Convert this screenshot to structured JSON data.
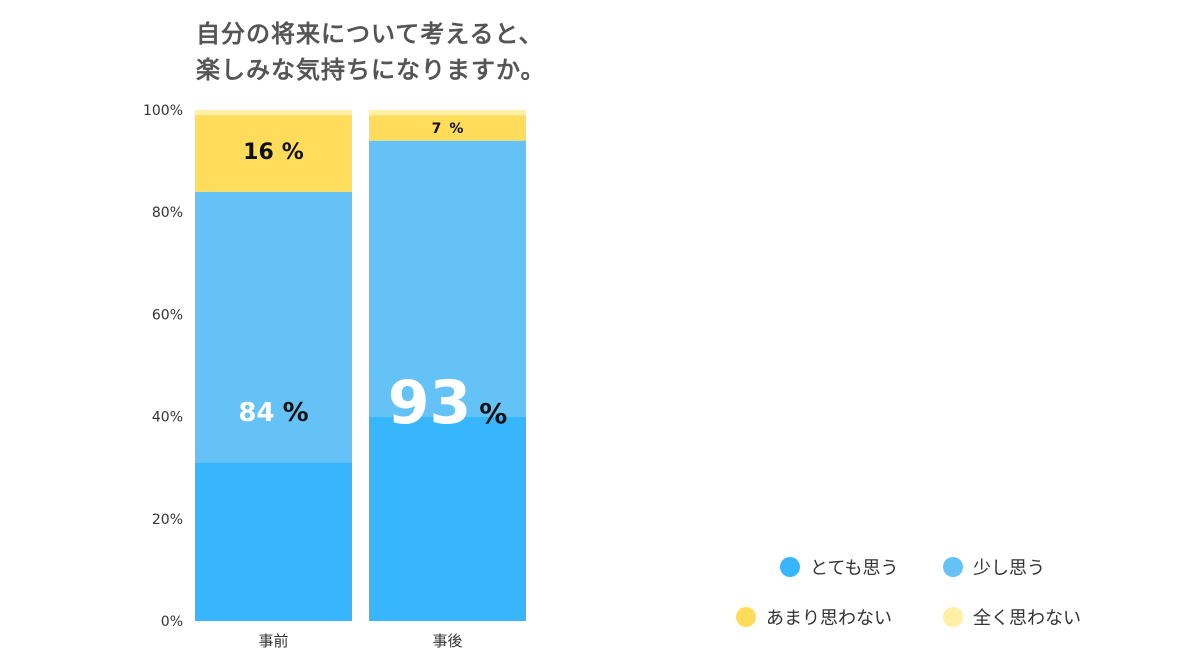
{
  "title": {
    "line1": "自分の将来について考えると、",
    "line2": "楽しみな気持ちになりますか。"
  },
  "chart_data": {
    "type": "bar",
    "stacked": true,
    "normalized": true,
    "categories": [
      "事前",
      "事後"
    ],
    "series": [
      {
        "name": "とても思う",
        "color": "#38b6fd",
        "values": [
          31,
          40
        ]
      },
      {
        "name": "少し思う",
        "color": "#65c2f7",
        "values": [
          53,
          54
        ]
      },
      {
        "name": "あまり思わない",
        "color": "#ffdc5a",
        "values": [
          15,
          5
        ]
      },
      {
        "name": "全く思わない",
        "color": "#fff0a6",
        "values": [
          1,
          1
        ]
      }
    ],
    "y_ticks": [
      "0%",
      "20%",
      "40%",
      "60%",
      "80%",
      "100%"
    ],
    "ylim": [
      0,
      100
    ],
    "annotations": [
      {
        "category": "事前",
        "number": "84",
        "unit": "%",
        "position": 41
      },
      {
        "category": "事前",
        "number": "16",
        "unit": "%",
        "position": 92
      },
      {
        "category": "事後",
        "number": "93",
        "unit": "%",
        "position": 43
      },
      {
        "category": "事後",
        "number": "7",
        "unit": "%",
        "position": 96.5
      }
    ],
    "legend_placement": "bottom-right"
  }
}
